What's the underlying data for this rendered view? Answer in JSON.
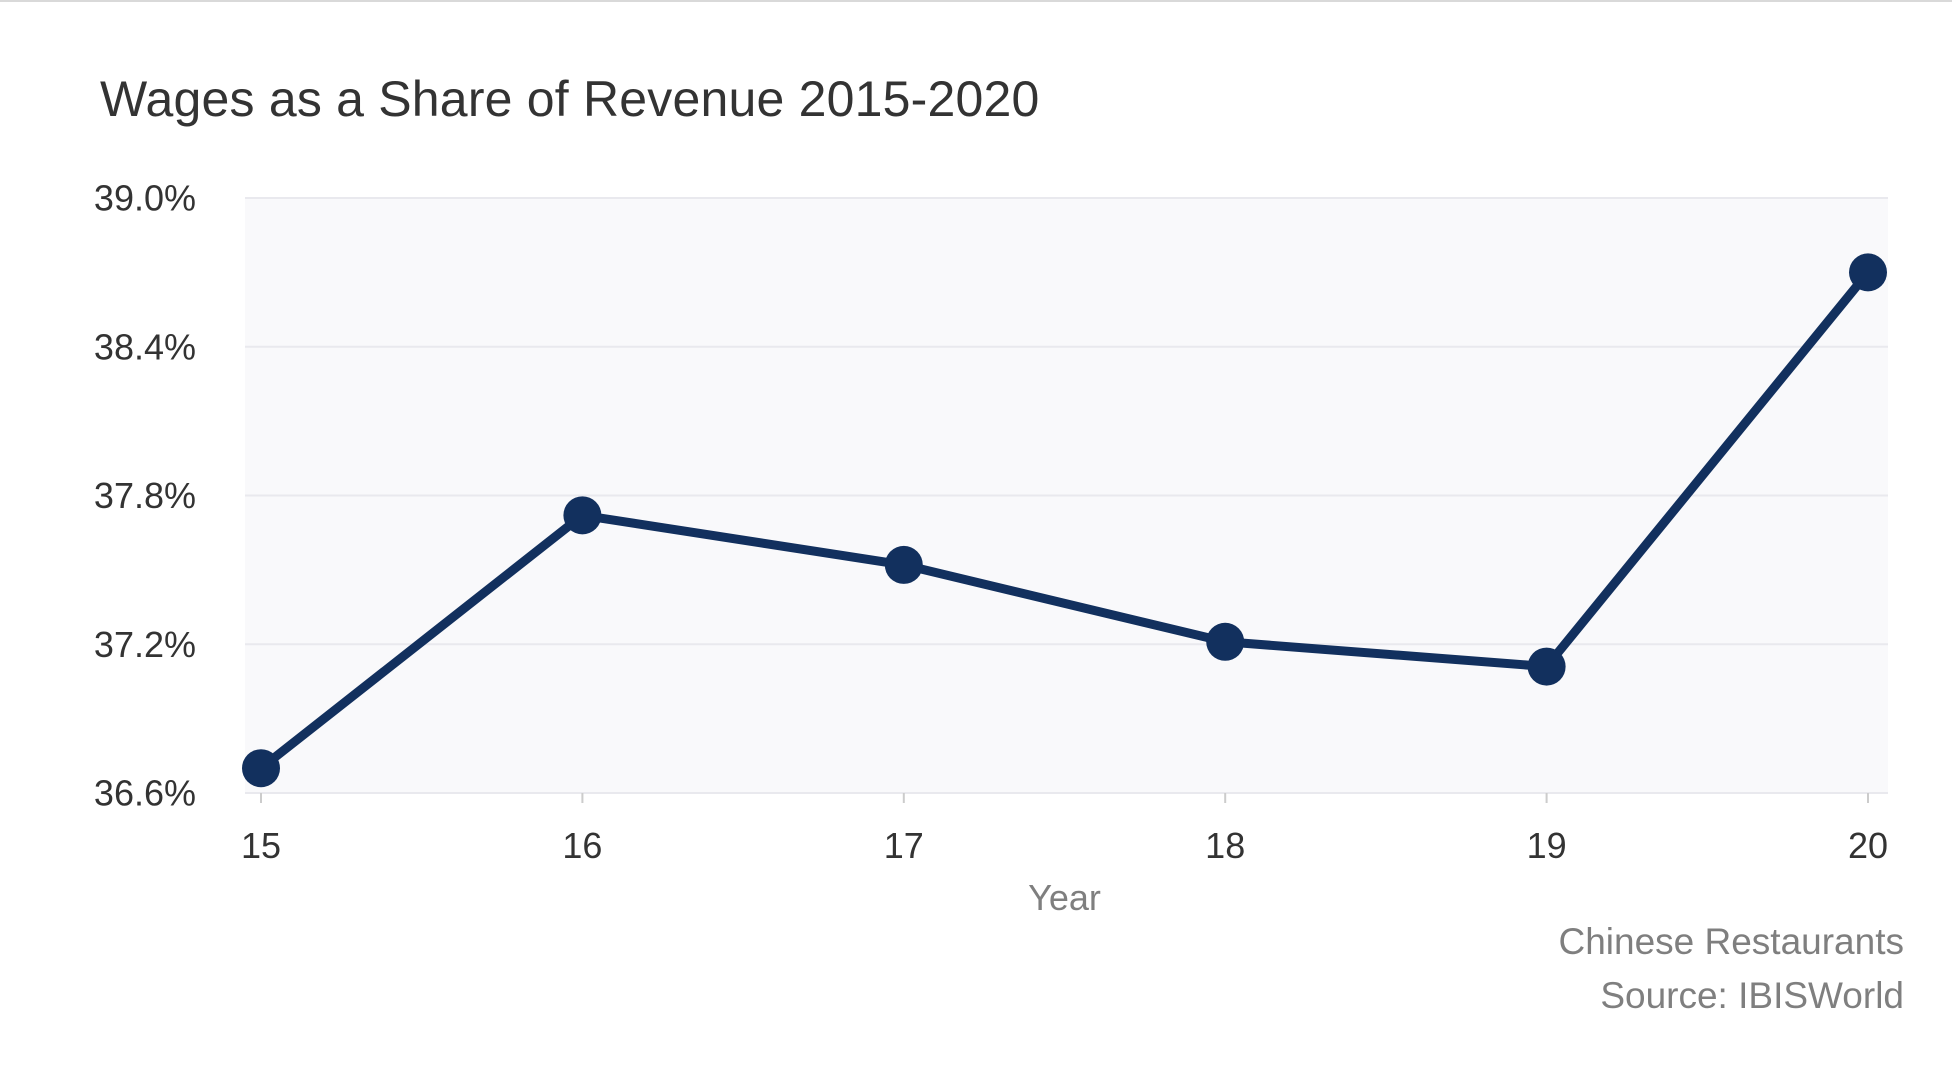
{
  "chart_data": {
    "type": "line",
    "title": "Wages as a Share of Revenue 2015-2020",
    "xlabel": "Year",
    "ylabel": "",
    "categories": [
      "15",
      "16",
      "17",
      "18",
      "19",
      "20"
    ],
    "series": [
      {
        "values": [
          36.7,
          37.72,
          37.52,
          37.21,
          37.11,
          38.7
        ]
      }
    ],
    "ylim": [
      36.6,
      39.0
    ],
    "yticks": [
      36.6,
      37.2,
      37.8,
      38.4,
      39.0
    ],
    "ytick_labels": [
      "36.6%",
      "37.2%",
      "37.8%",
      "38.4%",
      "39.0%"
    ],
    "grid": true,
    "legend": "none",
    "colors": {
      "line": "#12305e",
      "plot_background": "#f9f9fb",
      "gridline": "#e9e9ee",
      "text": "#333333",
      "muted_text": "#7f7f7f"
    }
  },
  "footer": {
    "industry": "Chinese Restaurants",
    "source": "Source: IBISWorld"
  }
}
